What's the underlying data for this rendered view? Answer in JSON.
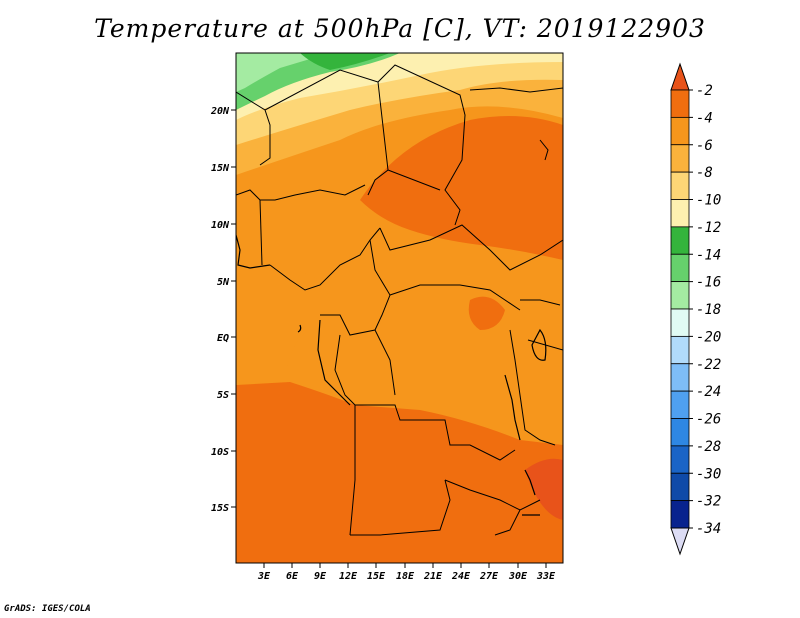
{
  "title": "Temperature at 500hPa [C], VT: 2019122903",
  "credit": "GrADS: IGES/COLA",
  "lat_labels": [
    "20N",
    "15N",
    "10N",
    "5N",
    "EQ",
    "5S",
    "10S",
    "15S"
  ],
  "lon_labels": [
    "3E",
    "6E",
    "9E",
    "12E",
    "15E",
    "18E",
    "21E",
    "24E",
    "27E",
    "30E",
    "33E"
  ],
  "colorbar": {
    "labels": [
      "-2",
      "-4",
      "-6",
      "-8",
      "-10",
      "-12",
      "-14",
      "-16",
      "-18",
      "-20",
      "-22",
      "-24",
      "-26",
      "-28",
      "-30",
      "-32",
      "-34"
    ],
    "colors": [
      "#e8531a",
      "#f06e0f",
      "#f6961c",
      "#fab23c",
      "#fdd676",
      "#fdf0b0",
      "#34b43c",
      "#66d16c",
      "#a4eba2",
      "#e1fbf4",
      "#b1dbfb",
      "#7ebdf7",
      "#4fa0f0",
      "#2e87e3",
      "#1a64c6",
      "#0f4aa8",
      "#08238e",
      "#080f5e"
    ],
    "top_arrow_color": "#e8531a",
    "bottom_arrow_color": "#dcdcf4"
  }
}
